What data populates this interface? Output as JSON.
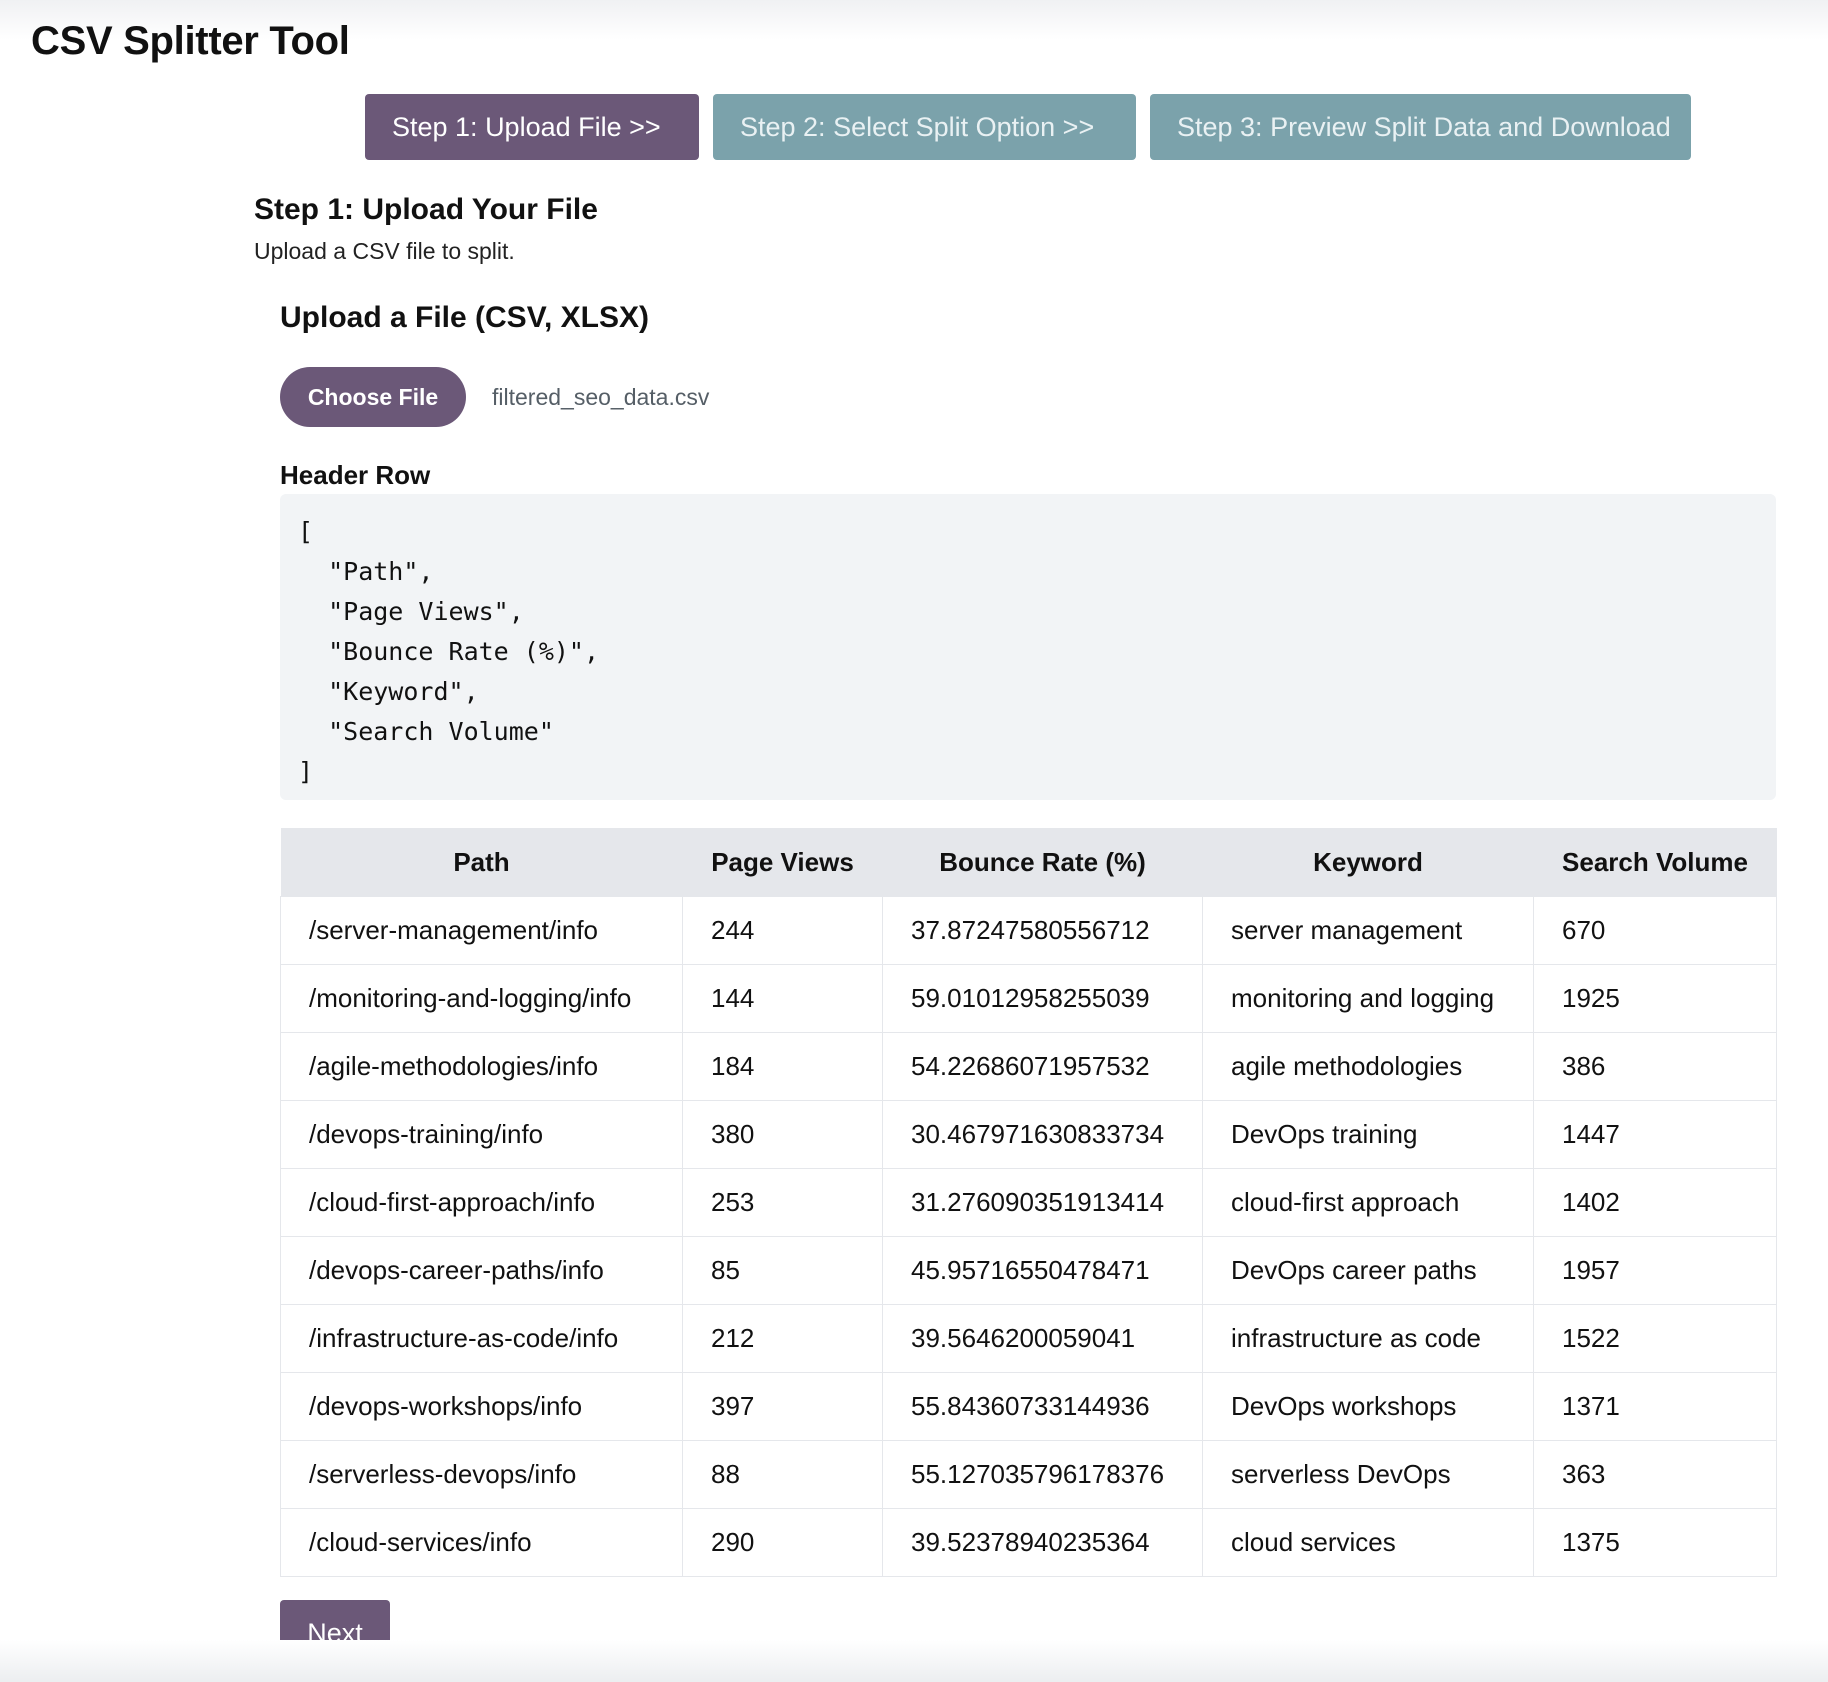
{
  "app": {
    "title": "CSV Splitter Tool"
  },
  "steps": [
    {
      "label": "Step 1: Upload File  >>",
      "state": "active"
    },
    {
      "label": "Step 2: Select Split Option  >>",
      "state": "inactive"
    },
    {
      "label": "Step 3: Preview Split Data and Download",
      "state": "inactive"
    }
  ],
  "section": {
    "title": "Step 1: Upload Your File",
    "subtitle": "Upload a CSV file to split."
  },
  "upload": {
    "title": "Upload a File (CSV, XLSX)",
    "button_label": "Choose File",
    "file_name": "filtered_seo_data.csv"
  },
  "header_row": {
    "label": "Header Row",
    "json_text": "[\n  \"Path\",\n  \"Page Views\",\n  \"Bounce Rate (%)\",\n  \"Keyword\",\n  \"Search Volume\"\n]"
  },
  "table": {
    "columns": [
      "Path",
      "Page Views",
      "Bounce Rate (%)",
      "Keyword",
      "Search Volume"
    ],
    "rows": [
      [
        "/server-management/info",
        "244",
        "37.87247580556712",
        "server management",
        "670"
      ],
      [
        "/monitoring-and-logging/info",
        "144",
        "59.01012958255039",
        "monitoring and logging",
        "1925"
      ],
      [
        "/agile-methodologies/info",
        "184",
        "54.22686071957532",
        "agile methodologies",
        "386"
      ],
      [
        "/devops-training/info",
        "380",
        "30.467971630833734",
        "DevOps training",
        "1447"
      ],
      [
        "/cloud-first-approach/info",
        "253",
        "31.276090351913414",
        "cloud-first approach",
        "1402"
      ],
      [
        "/devops-career-paths/info",
        "85",
        "45.95716550478471",
        "DevOps career paths",
        "1957"
      ],
      [
        "/infrastructure-as-code/info",
        "212",
        "39.5646200059041",
        "infrastructure as code",
        "1522"
      ],
      [
        "/devops-workshops/info",
        "397",
        "55.84360733144936",
        "DevOps workshops",
        "1371"
      ],
      [
        "/serverless-devops/info",
        "88",
        "55.127035796178376",
        "serverless DevOps",
        "363"
      ],
      [
        "/cloud-services/info",
        "290",
        "39.52378940235364",
        "cloud services",
        "1375"
      ]
    ]
  },
  "footer": {
    "next_label": "Next"
  },
  "colors": {
    "primary": "#6b5878",
    "secondary": "#7ba2ab",
    "code_bg": "#f2f4f6",
    "table_header_bg": "#e5e7eb"
  }
}
